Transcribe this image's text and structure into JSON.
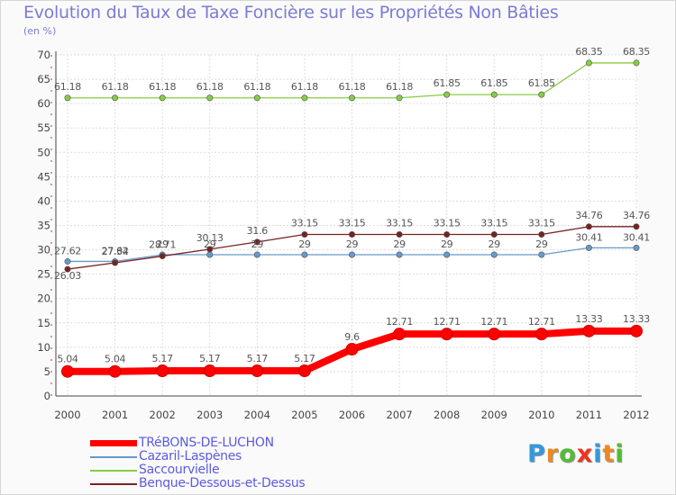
{
  "chart_data": {
    "type": "line",
    "title": "Evolution du Taux de Taxe Foncière sur les Propriétés Non Bâties",
    "subtitle": "(en %)",
    "categories": [
      "2000",
      "2001",
      "2002",
      "2003",
      "2004",
      "2005",
      "2006",
      "2007",
      "2008",
      "2009",
      "2010",
      "2011",
      "2012"
    ],
    "ylim": [
      0,
      70
    ],
    "yticks": [
      0,
      5,
      10,
      15,
      20,
      25,
      30,
      35,
      40,
      45,
      50,
      55,
      60,
      65,
      70
    ],
    "grid": true,
    "legend_position": "bottom",
    "series": [
      {
        "name": "TRéBONS-DE-LUCHON",
        "color": "#ff0000",
        "values": [
          5.04,
          5.04,
          5.17,
          5.17,
          5.17,
          5.17,
          9.6,
          12.71,
          12.71,
          12.71,
          12.71,
          13.33,
          13.33
        ],
        "labels": [
          "5.04",
          "5.04",
          "5.17",
          "5.17",
          "5.17",
          "5.17",
          "9.6",
          "12.71",
          "12.71",
          "12.71",
          "12.71",
          "13.33",
          "13.33"
        ]
      },
      {
        "name": "Cazaril-Laspènes",
        "color": "#6699cc",
        "values": [
          27.62,
          27.62,
          29,
          29,
          29,
          29,
          29,
          29,
          29,
          29,
          29,
          30.41,
          30.41
        ],
        "labels": [
          "27.62",
          "27.62",
          "29",
          "29",
          "29",
          "29",
          "29",
          "29",
          "29",
          "29",
          "29",
          "30.41",
          "30.41"
        ]
      },
      {
        "name": "Saccourvielle",
        "color": "#88cc44",
        "values": [
          61.18,
          61.18,
          61.18,
          61.18,
          61.18,
          61.18,
          61.18,
          61.18,
          61.85,
          61.85,
          61.85,
          68.35,
          68.35
        ],
        "labels": [
          "61.18",
          "61.18",
          "61.18",
          "61.18",
          "61.18",
          "61.18",
          "61.18",
          "61.18",
          "61.85",
          "61.85",
          "61.85",
          "68.35",
          "68.35"
        ]
      },
      {
        "name": "Benque-Dessous-et-Dessus",
        "color": "#772222",
        "values": [
          26.03,
          27.34,
          28.71,
          30.13,
          31.6,
          33.15,
          33.15,
          33.15,
          33.15,
          33.15,
          33.15,
          34.76,
          34.76
        ],
        "labels": [
          "26.03",
          "27.34",
          "28.71",
          "30.13",
          "31.6",
          "33.15",
          "33.15",
          "33.15",
          "33.15",
          "33.15",
          "33.15",
          "34.76",
          "34.76"
        ]
      }
    ]
  },
  "brand": {
    "letters": [
      "P",
      "r",
      "o",
      "x",
      "i",
      "t",
      "i"
    ],
    "colors": [
      "#3399dd",
      "#ee8822",
      "#55bb33",
      "#ee3322",
      "#3399dd",
      "#ee8822",
      "#55bb33"
    ]
  }
}
